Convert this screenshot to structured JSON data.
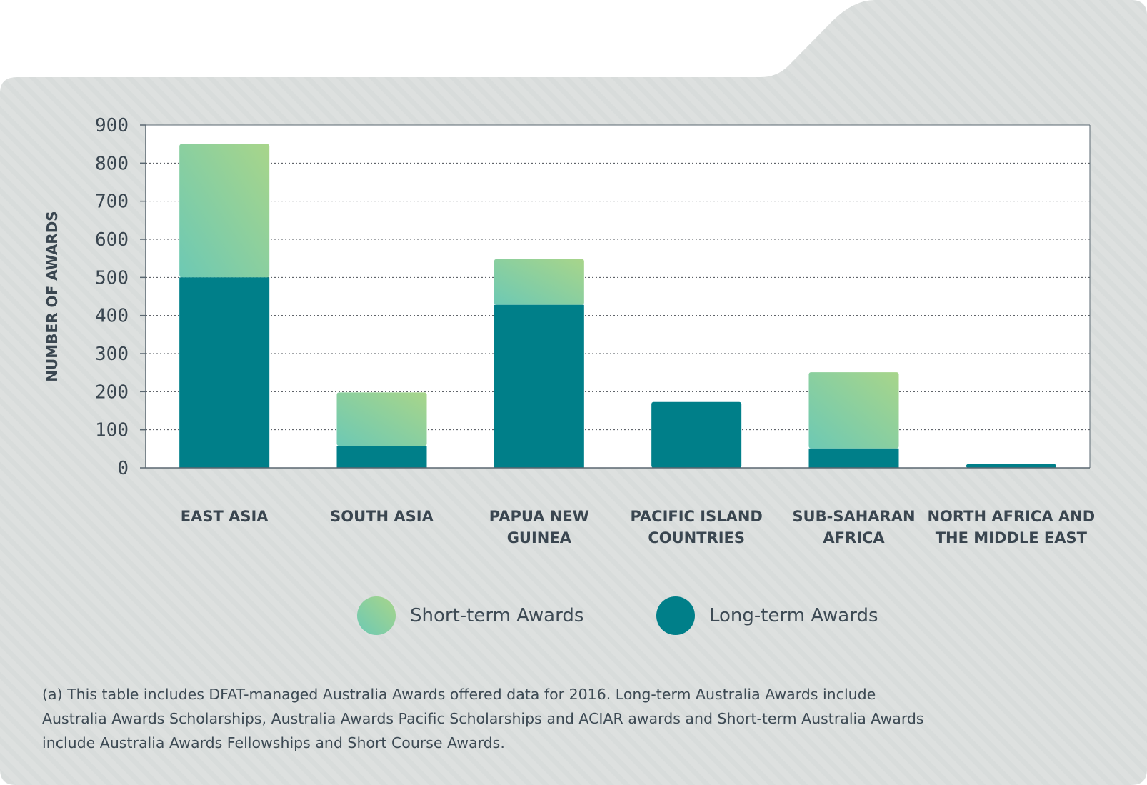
{
  "colors": {
    "panel": "#dde0df",
    "long_term": "#007f89",
    "short_term_start": "#6dc9b4",
    "short_term_end": "#a8d58a",
    "axis": "#5a6770",
    "text": "#3a4650"
  },
  "chart_data": {
    "type": "bar",
    "stacked": true,
    "ylabel": "NUMBER OF AWARDS",
    "xlabel": "",
    "ylim": [
      0,
      900
    ],
    "yticks": [
      0,
      100,
      200,
      300,
      400,
      500,
      600,
      700,
      800,
      900
    ],
    "grid": "horizontal dotted",
    "legend_position": "bottom",
    "categories": [
      [
        "EAST ASIA"
      ],
      [
        "SOUTH ASIA"
      ],
      [
        "PAPUA NEW",
        "GUINEA"
      ],
      [
        "PACIFIC ISLAND",
        "COUNTRIES"
      ],
      [
        "SUB-SAHARAN",
        "AFRICA"
      ],
      [
        "NORTH AFRICA AND",
        "THE MIDDLE EAST"
      ]
    ],
    "series": [
      {
        "name": "Long-term Awards",
        "values": [
          500,
          58,
          428,
          173,
          51,
          10
        ]
      },
      {
        "name": "Short-term Awards",
        "values": [
          350,
          140,
          120,
          0,
          200,
          0
        ]
      }
    ]
  },
  "legend": {
    "short_term": "Short-term Awards",
    "long_term": "Long-term Awards"
  },
  "footnote": "(a) This table includes DFAT-managed Australia Awards offered data for 2016. Long-term Australia Awards include Australia Awards Scholarships, Australia Awards Pacific Scholarships and ACIAR awards and Short-term Australia Awards include Australia Awards Fellowships and Short Course Awards."
}
